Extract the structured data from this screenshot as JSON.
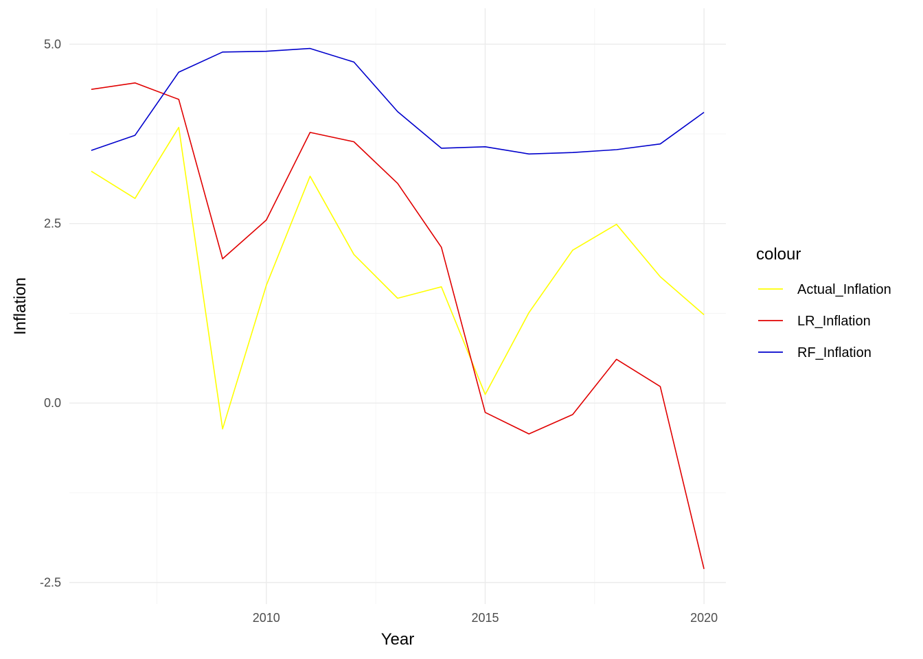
{
  "chart_data": {
    "type": "line",
    "title": "",
    "xlabel": "Year",
    "ylabel": "Inflation",
    "xlim": [
      2005.5,
      2020.5
    ],
    "ylim": [
      -2.8,
      5.5
    ],
    "x_ticks": [
      2010,
      2015,
      2020
    ],
    "x_minor_ticks": [
      2007.5,
      2012.5,
      2017.5
    ],
    "y_ticks": [
      -2.5,
      0.0,
      2.5,
      5.0
    ],
    "y_tick_labels": [
      "-2.5",
      "0.0",
      "2.5",
      "5.0"
    ],
    "y_minor_ticks": [
      -1.25,
      1.25,
      3.75
    ],
    "grid": true,
    "legend": {
      "title": "colour",
      "position": "right"
    },
    "x": [
      2006,
      2007,
      2008,
      2009,
      2010,
      2011,
      2012,
      2013,
      2014,
      2015,
      2016,
      2017,
      2018,
      2019,
      2020
    ],
    "series": [
      {
        "name": "Actual_Inflation",
        "color": "#ffff00",
        "values": [
          3.23,
          2.85,
          3.84,
          -0.36,
          1.64,
          3.16,
          2.07,
          1.46,
          1.62,
          0.12,
          1.26,
          2.13,
          2.49,
          1.76,
          1.23
        ]
      },
      {
        "name": "LR_Inflation",
        "color": "#e00000",
        "values": [
          4.37,
          4.46,
          4.23,
          2.01,
          2.55,
          3.77,
          3.64,
          3.06,
          2.17,
          -0.13,
          -0.43,
          -0.16,
          0.61,
          0.23,
          -2.31
        ]
      },
      {
        "name": "RF_Inflation",
        "color": "#0000cc",
        "values": [
          3.52,
          3.73,
          4.61,
          4.89,
          4.9,
          4.94,
          4.75,
          4.06,
          3.55,
          3.57,
          3.47,
          3.49,
          3.53,
          3.61,
          4.05
        ]
      }
    ]
  }
}
